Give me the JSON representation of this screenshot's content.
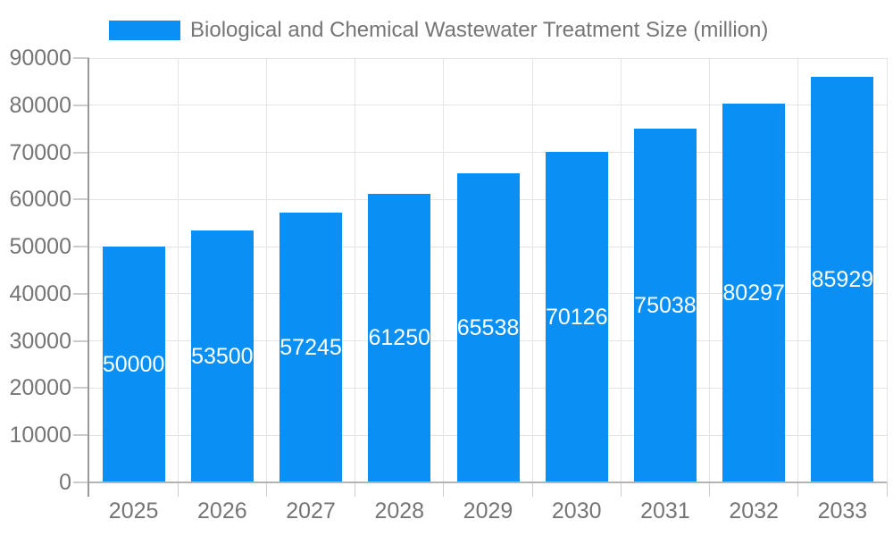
{
  "chart_data": {
    "type": "bar",
    "title": "Biological and Chemical Wastewater Treatment Size (million)",
    "categories": [
      "2025",
      "2026",
      "2027",
      "2028",
      "2029",
      "2030",
      "2031",
      "2032",
      "2033"
    ],
    "series": [
      {
        "name": "Biological and Chemical Wastewater Treatment Size (million)",
        "values": [
          50000,
          53500,
          57245,
          61250,
          65538,
          70126,
          75038,
          80297,
          85929
        ]
      }
    ],
    "bar_labels": [
      "50000",
      "53500",
      "57245",
      "61250",
      "65538",
      "70126",
      "75038",
      "80297",
      "85929"
    ],
    "xlabel": "",
    "ylabel": "",
    "ylim": [
      0,
      90000
    ],
    "ytick_step": 10000,
    "yticks": [
      0,
      10000,
      20000,
      30000,
      40000,
      50000,
      60000,
      70000,
      80000,
      90000
    ],
    "grid": "horizontal and vertical light-gray gridlines",
    "legend_position": "top-left",
    "colors": {
      "bar": "#0a90f5",
      "bar_label_text": "#ffffff",
      "axis_text": "#757575",
      "legend_text": "#757575",
      "y_axis_line": "#999999",
      "x_axis_line": "#b3b3b3",
      "grid_line": "#e4e4e4",
      "tick_line": "#cccccc",
      "background": "#ffffff"
    }
  }
}
